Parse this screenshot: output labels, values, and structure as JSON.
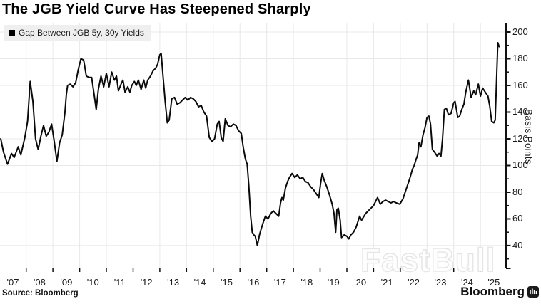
{
  "title": "The JGB Yield Curve Has Steepened Sharply",
  "legend": {
    "label": "Gap Between JGB 5y, 30y Yields",
    "swatch_color": "#000000"
  },
  "source": "Source: Bloomberg",
  "brand": {
    "name": "Bloomberg"
  },
  "watermark": "FastBull",
  "colors": {
    "line": "#0a0a0a",
    "grid": "#e8e8e8",
    "axis": "#111111",
    "tick_label": "#1a1a1a"
  },
  "chart_data": {
    "type": "line",
    "title": "The JGB Yield Curve Has Steepened Sharply",
    "series_name": "Gap Between JGB 5y, 30y Yields",
    "ylabel": "Basis Points",
    "y_axis_side": "right",
    "grid": true,
    "legend_position": "top-left",
    "ylim": [
      22.9,
      206.4
    ],
    "xlim": [
      2007.02,
      2025.93
    ],
    "y_ticks": [
      40,
      60,
      80,
      100,
      120,
      140,
      160,
      180,
      200
    ],
    "y_minor_ticks": [
      30,
      50,
      70,
      90,
      110,
      130,
      150,
      170,
      190
    ],
    "x_gridline_years": [
      2008,
      2009,
      2010,
      2011,
      2012,
      2013,
      2014,
      2015,
      2016,
      2017,
      2018,
      2019,
      2020,
      2021,
      2022,
      2023,
      2024,
      2025
    ],
    "x_tick_labels": [
      "'07",
      "'08",
      "'09",
      "'10",
      "'11",
      "'12",
      "'13",
      "'14",
      "'15",
      "'16",
      "'17",
      "'18",
      "'19",
      "'20",
      "'21",
      "'22",
      "'23",
      "'24",
      "'25"
    ],
    "x_label_center_years": [
      2007.5,
      2008.5,
      2009.5,
      2010.5,
      2011.5,
      2012.5,
      2013.5,
      2014.5,
      2015.5,
      2016.5,
      2017.5,
      2018.5,
      2019.5,
      2020.5,
      2021.5,
      2022.5,
      2023.5,
      2024.5,
      2025.5
    ],
    "points": [
      [
        2007.05,
        120
      ],
      [
        2007.15,
        110
      ],
      [
        2007.3,
        101
      ],
      [
        2007.45,
        109
      ],
      [
        2007.55,
        106
      ],
      [
        2007.7,
        114
      ],
      [
        2007.8,
        108
      ],
      [
        2007.95,
        121
      ],
      [
        2008.05,
        133
      ],
      [
        2008.15,
        163
      ],
      [
        2008.25,
        148
      ],
      [
        2008.35,
        120
      ],
      [
        2008.45,
        112
      ],
      [
        2008.55,
        122
      ],
      [
        2008.65,
        130
      ],
      [
        2008.75,
        122
      ],
      [
        2008.85,
        125
      ],
      [
        2008.95,
        131
      ],
      [
        2009.05,
        118
      ],
      [
        2009.15,
        103
      ],
      [
        2009.25,
        117
      ],
      [
        2009.35,
        123
      ],
      [
        2009.45,
        140
      ],
      [
        2009.5,
        153
      ],
      [
        2009.55,
        160
      ],
      [
        2009.65,
        161
      ],
      [
        2009.75,
        159
      ],
      [
        2009.85,
        162
      ],
      [
        2009.95,
        172
      ],
      [
        2010.05,
        180
      ],
      [
        2010.15,
        179
      ],
      [
        2010.25,
        167
      ],
      [
        2010.35,
        166
      ],
      [
        2010.45,
        166
      ],
      [
        2010.55,
        152
      ],
      [
        2010.62,
        142
      ],
      [
        2010.7,
        157
      ],
      [
        2010.8,
        167
      ],
      [
        2010.9,
        159
      ],
      [
        2011.0,
        169
      ],
      [
        2011.1,
        159
      ],
      [
        2011.2,
        170
      ],
      [
        2011.3,
        164
      ],
      [
        2011.38,
        167
      ],
      [
        2011.45,
        156
      ],
      [
        2011.55,
        161
      ],
      [
        2011.62,
        164
      ],
      [
        2011.7,
        155
      ],
      [
        2011.8,
        159
      ],
      [
        2011.88,
        155
      ],
      [
        2011.95,
        160
      ],
      [
        2012.05,
        163
      ],
      [
        2012.12,
        160
      ],
      [
        2012.2,
        164
      ],
      [
        2012.3,
        157
      ],
      [
        2012.4,
        164
      ],
      [
        2012.47,
        158
      ],
      [
        2012.55,
        164
      ],
      [
        2012.65,
        167
      ],
      [
        2012.75,
        171
      ],
      [
        2012.85,
        173
      ],
      [
        2012.92,
        176
      ],
      [
        2013.0,
        183
      ],
      [
        2013.05,
        184
      ],
      [
        2013.12,
        167
      ],
      [
        2013.2,
        148
      ],
      [
        2013.28,
        132
      ],
      [
        2013.35,
        134
      ],
      [
        2013.45,
        150
      ],
      [
        2013.55,
        151
      ],
      [
        2013.65,
        146
      ],
      [
        2013.75,
        147
      ],
      [
        2013.85,
        149
      ],
      [
        2013.95,
        151
      ],
      [
        2014.05,
        149
      ],
      [
        2014.15,
        151
      ],
      [
        2014.25,
        150
      ],
      [
        2014.35,
        148
      ],
      [
        2014.45,
        144
      ],
      [
        2014.55,
        145
      ],
      [
        2014.65,
        140
      ],
      [
        2014.75,
        137
      ],
      [
        2014.85,
        121
      ],
      [
        2014.95,
        118
      ],
      [
        2015.05,
        120
      ],
      [
        2015.15,
        131
      ],
      [
        2015.22,
        133
      ],
      [
        2015.3,
        121
      ],
      [
        2015.37,
        118
      ],
      [
        2015.45,
        135
      ],
      [
        2015.55,
        130
      ],
      [
        2015.65,
        129
      ],
      [
        2015.75,
        131
      ],
      [
        2015.85,
        130
      ],
      [
        2015.95,
        126
      ],
      [
        2016.05,
        124
      ],
      [
        2016.12,
        114
      ],
      [
        2016.2,
        105
      ],
      [
        2016.27,
        101
      ],
      [
        2016.33,
        85
      ],
      [
        2016.4,
        62
      ],
      [
        2016.46,
        50
      ],
      [
        2016.52,
        48
      ],
      [
        2016.57,
        47
      ],
      [
        2016.65,
        40
      ],
      [
        2016.73,
        48
      ],
      [
        2016.8,
        53
      ],
      [
        2016.88,
        58
      ],
      [
        2016.95,
        62
      ],
      [
        2017.05,
        60
      ],
      [
        2017.15,
        64
      ],
      [
        2017.25,
        66
      ],
      [
        2017.35,
        64
      ],
      [
        2017.45,
        62
      ],
      [
        2017.52,
        72
      ],
      [
        2017.57,
        76
      ],
      [
        2017.62,
        74
      ],
      [
        2017.7,
        83
      ],
      [
        2017.78,
        88
      ],
      [
        2017.85,
        91
      ],
      [
        2017.95,
        94
      ],
      [
        2018.05,
        91
      ],
      [
        2018.15,
        93
      ],
      [
        2018.25,
        90
      ],
      [
        2018.35,
        91
      ],
      [
        2018.45,
        88
      ],
      [
        2018.55,
        87
      ],
      [
        2018.65,
        84
      ],
      [
        2018.75,
        82
      ],
      [
        2018.85,
        79
      ],
      [
        2018.95,
        76
      ],
      [
        2019.02,
        87
      ],
      [
        2019.08,
        94
      ],
      [
        2019.15,
        89
      ],
      [
        2019.25,
        84
      ],
      [
        2019.35,
        78
      ],
      [
        2019.45,
        71
      ],
      [
        2019.52,
        64
      ],
      [
        2019.58,
        50
      ],
      [
        2019.63,
        67
      ],
      [
        2019.68,
        68
      ],
      [
        2019.75,
        59
      ],
      [
        2019.8,
        46
      ],
      [
        2019.9,
        48
      ],
      [
        2020.0,
        47
      ],
      [
        2020.07,
        45
      ],
      [
        2020.15,
        48
      ],
      [
        2020.25,
        50
      ],
      [
        2020.35,
        54
      ],
      [
        2020.48,
        62
      ],
      [
        2020.55,
        59
      ],
      [
        2020.7,
        64
      ],
      [
        2020.85,
        67
      ],
      [
        2021.0,
        70
      ],
      [
        2021.15,
        76
      ],
      [
        2021.25,
        71
      ],
      [
        2021.35,
        73
      ],
      [
        2021.45,
        74
      ],
      [
        2021.55,
        73
      ],
      [
        2021.65,
        72
      ],
      [
        2021.75,
        73
      ],
      [
        2021.85,
        72
      ],
      [
        2021.98,
        71
      ],
      [
        2022.1,
        75
      ],
      [
        2022.2,
        81
      ],
      [
        2022.3,
        87
      ],
      [
        2022.38,
        92
      ],
      [
        2022.45,
        97
      ],
      [
        2022.52,
        100
      ],
      [
        2022.58,
        104
      ],
      [
        2022.65,
        108
      ],
      [
        2022.7,
        117
      ],
      [
        2022.77,
        114
      ],
      [
        2022.85,
        123
      ],
      [
        2022.92,
        128
      ],
      [
        2023.0,
        136
      ],
      [
        2023.07,
        137
      ],
      [
        2023.13,
        131
      ],
      [
        2023.2,
        112
      ],
      [
        2023.28,
        110
      ],
      [
        2023.38,
        107
      ],
      [
        2023.45,
        109
      ],
      [
        2023.52,
        107
      ],
      [
        2023.58,
        120
      ],
      [
        2023.65,
        142
      ],
      [
        2023.72,
        143
      ],
      [
        2023.8,
        138
      ],
      [
        2023.9,
        139
      ],
      [
        2024.0,
        147
      ],
      [
        2024.05,
        148
      ],
      [
        2024.15,
        136
      ],
      [
        2024.22,
        137
      ],
      [
        2024.3,
        142
      ],
      [
        2024.38,
        146
      ],
      [
        2024.45,
        155
      ],
      [
        2024.55,
        164
      ],
      [
        2024.65,
        151
      ],
      [
        2024.75,
        156
      ],
      [
        2024.82,
        153
      ],
      [
        2024.92,
        161
      ],
      [
        2025.0,
        152
      ],
      [
        2025.08,
        158
      ],
      [
        2025.18,
        155
      ],
      [
        2025.28,
        152
      ],
      [
        2025.35,
        144
      ],
      [
        2025.42,
        133
      ],
      [
        2025.5,
        132
      ],
      [
        2025.55,
        134
      ],
      [
        2025.6,
        162
      ],
      [
        2025.65,
        192
      ],
      [
        2025.7,
        189
      ]
    ]
  }
}
